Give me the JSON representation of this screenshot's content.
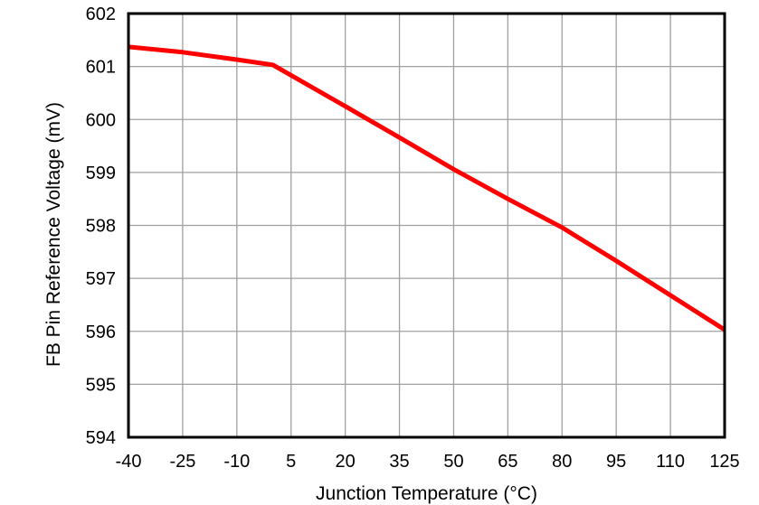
{
  "chart_data": {
    "type": "line",
    "title": "",
    "xlabel": "Junction Temperature (°C)",
    "ylabel": "FB Pin Reference Voltage (mV)",
    "xlim": [
      -40,
      125
    ],
    "ylim": [
      594,
      602
    ],
    "x_ticks": [
      -40,
      -25,
      -10,
      5,
      20,
      35,
      50,
      65,
      80,
      95,
      110,
      125
    ],
    "y_ticks": [
      594,
      595,
      596,
      597,
      598,
      599,
      600,
      601,
      602
    ],
    "grid": true,
    "legend": null,
    "series": [
      {
        "name": "FB Pin Reference Voltage",
        "color": "#ff0000",
        "x": [
          -40,
          -25,
          -10,
          0,
          20,
          35,
          50,
          65,
          80,
          95,
          110,
          125
        ],
        "y": [
          601.37,
          601.27,
          601.13,
          601.03,
          600.25,
          599.66,
          599.06,
          598.5,
          597.96,
          597.33,
          596.68,
          596.03
        ]
      }
    ]
  },
  "colors": {
    "line": "#ff0000",
    "grid": "#a0a0a0",
    "frame": "#000000",
    "background": "#ffffff"
  }
}
